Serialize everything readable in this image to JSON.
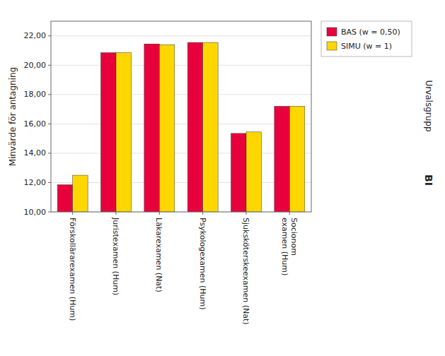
{
  "chart_data": {
    "type": "bar",
    "categories": [
      "Förskollärarexamen (Hum)",
      "Juristexamen (Hum)",
      "Läkarexamen (Nat)",
      "Psykologexamen (Hum)",
      "Sjuksköterskeexamen (Nat)",
      "Socionom\nexamen (Hum)"
    ],
    "series": [
      {
        "name": "BAS (w = 0,50)",
        "color": "#E8003C",
        "values": [
          11.85,
          20.85,
          21.45,
          21.55,
          15.35,
          17.2
        ]
      },
      {
        "name": "SIMU (w = 1)",
        "color": "#FFD700",
        "values": [
          12.5,
          20.85,
          21.4,
          21.55,
          15.45,
          17.2
        ]
      }
    ],
    "y_label": "Minvärde för antagning",
    "annotations": [
      {
        "text": "Urvalsgrupp"
      },
      {
        "text": "BI"
      }
    ],
    "ylim": [
      10.0,
      23.0
    ],
    "yticks": [
      {
        "value": 10.0,
        "label": "10,00"
      },
      {
        "value": 12.0,
        "label": "12,00"
      },
      {
        "value": 14.0,
        "label": "14,00"
      },
      {
        "value": 16.0,
        "label": "16,00"
      },
      {
        "value": 18.0,
        "label": "18,00"
      },
      {
        "value": 20.0,
        "label": "20,00"
      },
      {
        "value": 22.0,
        "label": "22,00"
      }
    ],
    "grid": true,
    "legend": "right"
  }
}
